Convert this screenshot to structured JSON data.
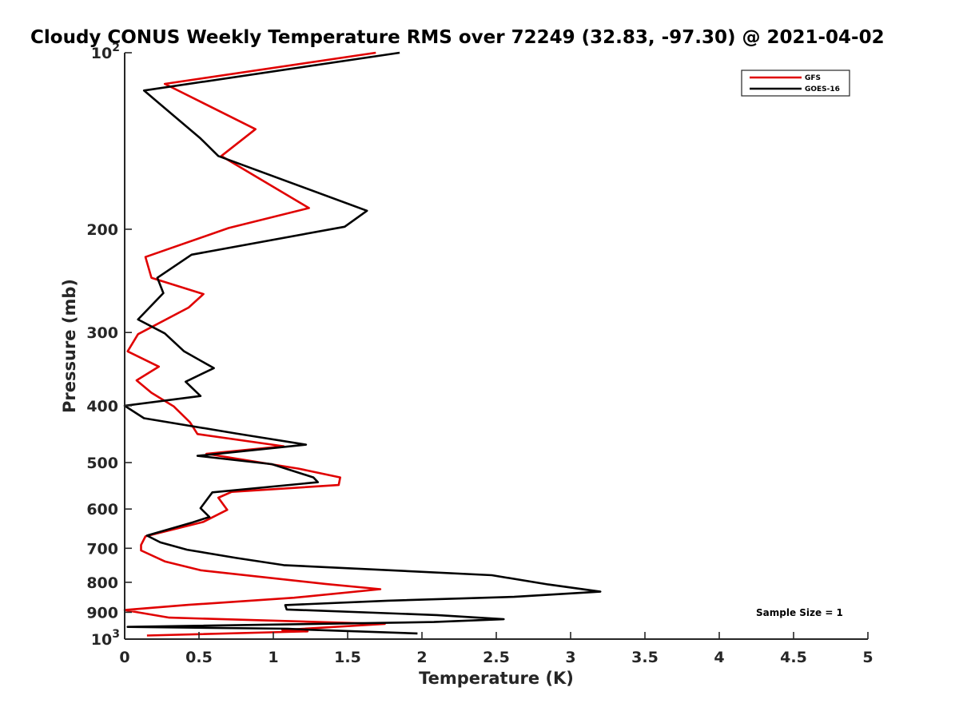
{
  "chart_data": {
    "type": "line",
    "title": "Cloudy CONUS Weekly Temperature RMS over 72249 (32.83, -97.30) @ 2021-04-02",
    "xlabel": "Temperature (K)",
    "ylabel": "Pressure (mb)",
    "xlim": [
      0,
      5
    ],
    "ylim": [
      100,
      1000
    ],
    "yscale": "log",
    "y_reversed": true,
    "grid": false,
    "legend_position": "top-right",
    "x_ticks": [
      0,
      0.5,
      1,
      1.5,
      2,
      2.5,
      3,
      3.5,
      4,
      4.5,
      5
    ],
    "x_tick_labels": [
      "0",
      "0.5",
      "1",
      "1.5",
      "2",
      "2.5",
      "3",
      "3.5",
      "4",
      "4.5",
      "5"
    ],
    "y_ticks": [
      100,
      200,
      300,
      400,
      500,
      600,
      700,
      800,
      900,
      1000
    ],
    "y_tick_labels": [
      {
        "base": "10",
        "exp": "2"
      },
      {
        "base": "200",
        "exp": ""
      },
      {
        "base": "300",
        "exp": ""
      },
      {
        "base": "400",
        "exp": ""
      },
      {
        "base": "500",
        "exp": ""
      },
      {
        "base": "600",
        "exp": ""
      },
      {
        "base": "700",
        "exp": ""
      },
      {
        "base": "800",
        "exp": ""
      },
      {
        "base": "900",
        "exp": ""
      },
      {
        "base": "10",
        "exp": "3"
      }
    ],
    "annotation": "Sample Size = 1",
    "series": [
      {
        "name": "GFS",
        "color": "#e00000",
        "points": [
          [
            1.69,
            100
          ],
          [
            0.27,
            113
          ],
          [
            0.88,
            135
          ],
          [
            0.65,
            150
          ],
          [
            1.24,
            184
          ],
          [
            0.7,
            199
          ],
          [
            0.14,
            223
          ],
          [
            0.18,
            242
          ],
          [
            0.53,
            258
          ],
          [
            0.43,
            272
          ],
          [
            0.09,
            302
          ],
          [
            0.02,
            323
          ],
          [
            0.23,
            343
          ],
          [
            0.08,
            362
          ],
          [
            0.18,
            380
          ],
          [
            0.33,
            401
          ],
          [
            0.44,
            427
          ],
          [
            0.49,
            447
          ],
          [
            1.07,
            469
          ],
          [
            0.55,
            483
          ],
          [
            1.17,
            512
          ],
          [
            1.45,
            530
          ],
          [
            1.44,
            546
          ],
          [
            0.72,
            561
          ],
          [
            0.63,
            574
          ],
          [
            0.69,
            602
          ],
          [
            0.53,
            631
          ],
          [
            0.14,
            668
          ],
          [
            0.11,
            691
          ],
          [
            0.11,
            706
          ],
          [
            0.27,
            737
          ],
          [
            0.51,
            763
          ],
          [
            1.35,
            805
          ],
          [
            1.72,
            822
          ],
          [
            1.14,
            850
          ],
          [
            0.43,
            874
          ],
          [
            0.0,
            892
          ],
          [
            0.3,
            919
          ],
          [
            1.75,
            942
          ],
          [
            1.06,
            965
          ],
          [
            1.23,
            970
          ],
          [
            0.15,
            986
          ]
        ]
      },
      {
        "name": "GOES-16",
        "color": "#000000",
        "points": [
          [
            1.85,
            100
          ],
          [
            0.13,
            116
          ],
          [
            0.51,
            140
          ],
          [
            0.63,
            150
          ],
          [
            1.63,
            186
          ],
          [
            1.48,
            198
          ],
          [
            0.45,
            221
          ],
          [
            0.22,
            242
          ],
          [
            0.26,
            257
          ],
          [
            0.09,
            285
          ],
          [
            0.27,
            301
          ],
          [
            0.4,
            323
          ],
          [
            0.6,
            345
          ],
          [
            0.41,
            364
          ],
          [
            0.51,
            385
          ],
          [
            0.0,
            400
          ],
          [
            0.13,
            420
          ],
          [
            0.75,
            446
          ],
          [
            1.22,
            466
          ],
          [
            0.49,
            487
          ],
          [
            0.99,
            503
          ],
          [
            1.27,
            530
          ],
          [
            1.3,
            540
          ],
          [
            0.59,
            562
          ],
          [
            0.51,
            598
          ],
          [
            0.57,
            619
          ],
          [
            0.46,
            632
          ],
          [
            0.15,
            666
          ],
          [
            0.24,
            684
          ],
          [
            0.42,
            704
          ],
          [
            0.75,
            727
          ],
          [
            1.07,
            748
          ],
          [
            2.47,
            778
          ],
          [
            2.85,
            807
          ],
          [
            3.2,
            830
          ],
          [
            2.62,
            847
          ],
          [
            1.77,
            860
          ],
          [
            1.08,
            875
          ],
          [
            1.09,
            890
          ],
          [
            2.1,
            910
          ],
          [
            2.55,
            925
          ],
          [
            2.08,
            935
          ],
          [
            0.02,
            953
          ],
          [
            1.1,
            960
          ],
          [
            1.25,
            964
          ],
          [
            1.97,
            978
          ]
        ]
      }
    ]
  }
}
